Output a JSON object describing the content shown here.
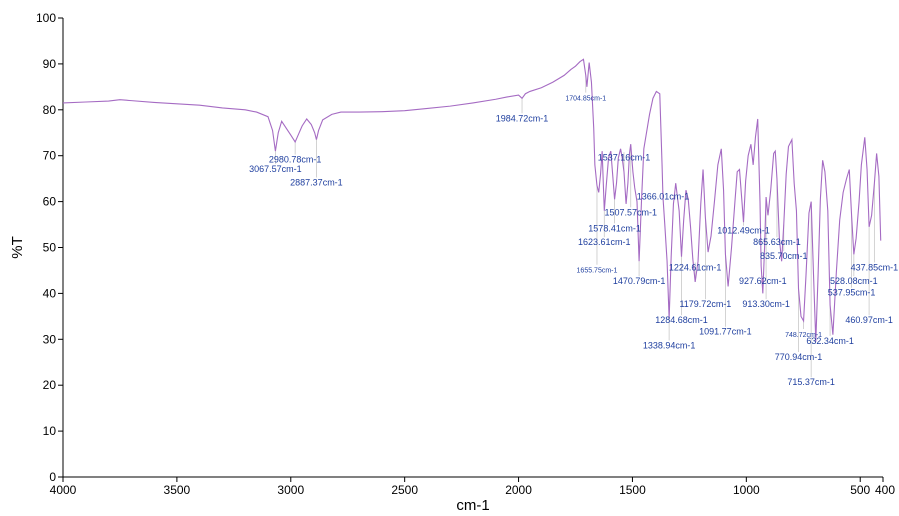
{
  "chart_data": {
    "type": "line",
    "title": "",
    "xlabel": "cm-1",
    "ylabel": "%T",
    "xlim": [
      4000,
      400
    ],
    "ylim": [
      0,
      100
    ],
    "x_reversed": true,
    "grid": false,
    "x_ticks": [
      4000,
      3500,
      3000,
      2500,
      2000,
      1500,
      1000,
      500,
      400
    ],
    "x_tick_labels": [
      "4000",
      "3500",
      "3000",
      "2500",
      "2000",
      "1500",
      "1000",
      "500",
      "400"
    ],
    "y_ticks": [
      0,
      10,
      20,
      30,
      40,
      50,
      60,
      70,
      80,
      90,
      100
    ],
    "y_tick_labels": [
      "0",
      "10",
      "20",
      "30",
      "40",
      "50",
      "60",
      "70",
      "80",
      "90",
      "100"
    ],
    "line_color": "#a56bc3",
    "label_color": "#1f3f9f",
    "series": [
      {
        "x": [
          4000,
          3900,
          3800,
          3750,
          3700,
          3600,
          3500,
          3400,
          3300,
          3200,
          3150,
          3100,
          3080,
          3067.57,
          3055,
          3040,
          3020,
          3000,
          2980.78,
          2965,
          2950,
          2930,
          2910,
          2895,
          2887.37,
          2878,
          2860,
          2820,
          2780,
          2700,
          2600,
          2500,
          2400,
          2300,
          2200,
          2100,
          2050,
          2000,
          1984.72,
          1970,
          1950,
          1900,
          1850,
          1800,
          1770,
          1750,
          1730,
          1715,
          1704.85,
          1700,
          1690,
          1680,
          1670,
          1665,
          1655.75,
          1648,
          1640,
          1633,
          1623.61,
          1615,
          1605,
          1595,
          1587,
          1578.41,
          1570,
          1562,
          1552,
          1545,
          1537.16,
          1528,
          1520,
          1513,
          1507.57,
          1498,
          1490,
          1480,
          1470.79,
          1460,
          1450,
          1440,
          1425,
          1410,
          1395,
          1380,
          1370,
          1366.01,
          1358,
          1348,
          1338.94,
          1330,
          1320,
          1310,
          1295,
          1284.68,
          1275,
          1265,
          1255,
          1245,
          1235,
          1224.61,
          1212,
          1200,
          1190,
          1179.72,
          1168,
          1155,
          1140,
          1125,
          1110,
          1100,
          1091.77,
          1080,
          1065,
          1050,
          1040,
          1030,
          1020,
          1012.49,
          1003,
          992,
          980,
          970,
          960,
          950,
          940,
          935,
          927.62,
          920,
          913.3,
          905,
          893,
          880,
          873,
          865.63,
          855,
          845,
          835.7,
          825,
          815,
          800,
          790,
          780,
          770.94,
          760,
          748.72,
          738,
          725,
          715.37,
          705,
          695,
          685,
          675,
          665,
          655,
          642.34,
          632.34,
          620,
          605,
          590,
          575,
          560,
          548,
          537.95,
          528.08,
          518,
          505,
          495,
          480,
          470,
          460.97,
          450,
          437.85,
          428,
          418,
          410
        ],
        "y": [
          81.5,
          81.7,
          81.9,
          82.2,
          82.0,
          81.6,
          81.3,
          81.0,
          80.4,
          80.0,
          79.5,
          78.5,
          75.5,
          71.0,
          75.0,
          77.5,
          76.0,
          74.5,
          73.0,
          74.8,
          76.5,
          78.0,
          76.8,
          75.0,
          73.5,
          75.5,
          77.8,
          79.0,
          79.5,
          79.5,
          79.6,
          79.8,
          80.3,
          80.8,
          81.5,
          82.3,
          82.8,
          83.2,
          82.5,
          83.5,
          84.0,
          84.8,
          86.0,
          87.5,
          88.8,
          89.5,
          90.5,
          91.0,
          87.5,
          85.0,
          90.3,
          86.0,
          76.0,
          68.0,
          63.5,
          62.0,
          66.0,
          71.0,
          58.0,
          63.5,
          69.5,
          71.0,
          66.0,
          60.5,
          64.0,
          69.5,
          71.5,
          69.5,
          66.5,
          59.5,
          64.0,
          70.5,
          72.5,
          66.5,
          63.0,
          60.0,
          47.0,
          60.5,
          71.5,
          74.5,
          79.0,
          82.5,
          84.0,
          83.5,
          68.0,
          61.0,
          55.0,
          47.0,
          34.5,
          48.0,
          59.5,
          64.0,
          58.0,
          48.0,
          56.0,
          62.5,
          60.5,
          54.5,
          47.5,
          42.5,
          47.0,
          59.5,
          67.0,
          56.5,
          49.0,
          52.5,
          60.0,
          68.0,
          71.5,
          62.5,
          48.5,
          41.5,
          50.0,
          60.0,
          66.5,
          67.0,
          60.5,
          55.5,
          64.5,
          70.0,
          72.5,
          68.0,
          74.0,
          78.0,
          60.0,
          46.0,
          40.0,
          50.0,
          61.0,
          57.0,
          62.5,
          70.5,
          71.0,
          65.0,
          52.0,
          47.0,
          55.0,
          66.0,
          72.0,
          73.5,
          64.0,
          58.0,
          41.0,
          35.0,
          34.0,
          44.0,
          57.5,
          60.0,
          44.0,
          29.5,
          44.0,
          60.5,
          69.0,
          66.5,
          58.0,
          37.5,
          31.0,
          44.5,
          56.0,
          62.0,
          65.0,
          67.0,
          57.0,
          48.5,
          52.0,
          60.0,
          68.0,
          74.0,
          67.0,
          54.5,
          57.0,
          64.0,
          70.5,
          65.5,
          51.5
        ]
      }
    ],
    "annotations": [
      {
        "text": "3067.57cm-1",
        "x": 3067.57,
        "y_label": 66.5
      },
      {
        "text": "2980.78cm-1",
        "x": 2980.78,
        "y_label": 68.5
      },
      {
        "text": "2887.37cm-1",
        "x": 2887.37,
        "y_label": 63.5
      },
      {
        "text": "1984.72cm-1",
        "x": 1984.72,
        "y_label": 77.5
      },
      {
        "text": "1704.85cm-1",
        "x": 1704.85,
        "y_label": 82.0
      },
      {
        "text": "1655.75cm-1",
        "x": 1655.75,
        "y_label": 44.5
      },
      {
        "text": "1623.61cm-1",
        "x": 1623.61,
        "y_label": 50.5
      },
      {
        "text": "1578.41cm-1",
        "x": 1578.41,
        "y_label": 53.5
      },
      {
        "text": "1537.16cm-1",
        "x": 1537.16,
        "y_label": 69.0
      },
      {
        "text": "1507.57cm-1",
        "x": 1507.57,
        "y_label": 57.0
      },
      {
        "text": "1470.79cm-1",
        "x": 1470.79,
        "y_label": 42.0
      },
      {
        "text": "1366.01cm-1",
        "x": 1366.01,
        "y_label": 60.5
      },
      {
        "text": "1338.94cm-1",
        "x": 1338.94,
        "y_label": 28.0
      },
      {
        "text": "1284.68cm-1",
        "x": 1284.68,
        "y_label": 33.5
      },
      {
        "text": "1224.61cm-1",
        "x": 1224.61,
        "y_label": 45.0
      },
      {
        "text": "1179.72cm-1",
        "x": 1179.72,
        "y_label": 37.0
      },
      {
        "text": "1091.77cm-1",
        "x": 1091.77,
        "y_label": 31.0
      },
      {
        "text": "1012.49cm-1",
        "x": 1012.49,
        "y_label": 53.0
      },
      {
        "text": "927.62cm-1",
        "x": 927.62,
        "y_label": 42.0
      },
      {
        "text": "913.30cm-1",
        "x": 913.3,
        "y_label": 37.0
      },
      {
        "text": "865.63cm-1",
        "x": 865.63,
        "y_label": 50.5
      },
      {
        "text": "835.70cm-1",
        "x": 835.7,
        "y_label": 47.5
      },
      {
        "text": "748.72cm-1",
        "x": 748.72,
        "y_label": 30.5
      },
      {
        "text": "770.94cm-1",
        "x": 770.94,
        "y_label": 25.5
      },
      {
        "text": "715.37cm-1",
        "x": 715.37,
        "y_label": 20.0
      },
      {
        "text": "632.34cm-1",
        "x": 632.34,
        "y_label": 29.0
      },
      {
        "text": "528.08cm-1",
        "x": 528.08,
        "y_label": 42.0
      },
      {
        "text": "537.95cm-1",
        "x": 537.95,
        "y_label": 39.5
      },
      {
        "text": "460.97cm-1",
        "x": 460.97,
        "y_label": 33.5
      },
      {
        "text": "437.85cm-1",
        "x": 437.85,
        "y_label": 45.0
      }
    ]
  }
}
